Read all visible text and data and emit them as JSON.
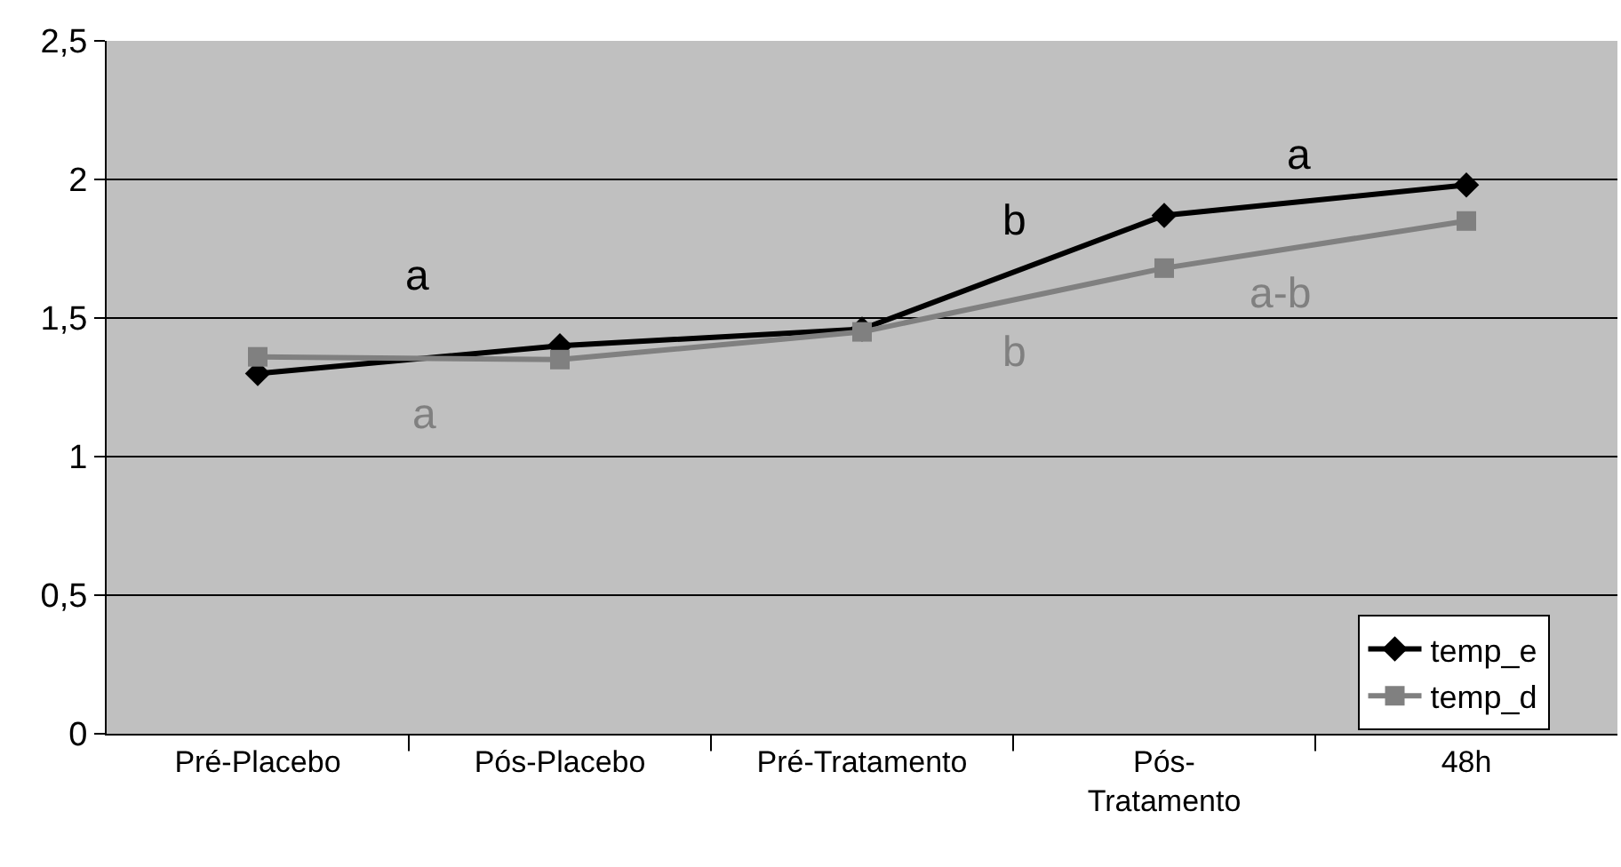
{
  "chart_data": {
    "type": "line",
    "categories": [
      "Pré-Placebo",
      "Pós-Placebo",
      "Pré-Tratamento",
      "Pós-\nTratamento",
      "48h"
    ],
    "series": [
      {
        "name": "temp_e",
        "color": "#000000",
        "values": [
          1.3,
          1.4,
          1.46,
          1.87,
          1.98
        ],
        "marker": "diamond"
      },
      {
        "name": "temp_d",
        "color": "#808080",
        "values": [
          1.36,
          1.35,
          1.45,
          1.68,
          1.85
        ],
        "marker": "square"
      }
    ],
    "ylim": [
      0,
      2.5
    ],
    "yticks": [
      0,
      {
        "value": 0.5,
        "label": "0,5"
      },
      1,
      {
        "value": 1.5,
        "label": "1,5"
      },
      2,
      {
        "value": 2.5,
        "label": "2,5"
      }
    ],
    "grid": "y",
    "legend": "bottom right",
    "line_style": "solid",
    "annotations": [
      "a",
      "a",
      "b",
      "b",
      "a",
      "a-b"
    ]
  }
}
